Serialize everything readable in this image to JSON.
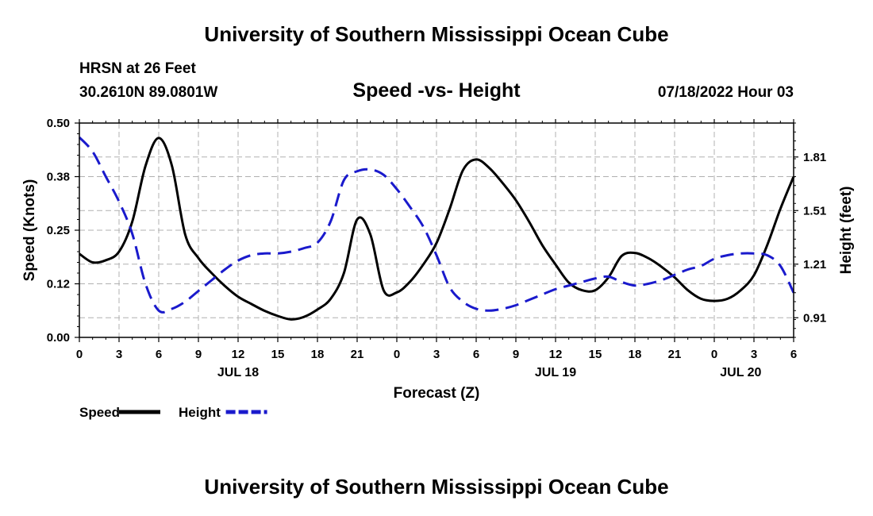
{
  "header": {
    "title": "University of Southern Mississippi Ocean Cube",
    "station": "HRSN at 26 Feet",
    "coords": "30.2610N  89.0801W",
    "chart_title": "Speed -vs- Height",
    "datetime": "07/18/2022 Hour 03"
  },
  "footer": {
    "title": "University of Southern Mississippi Ocean Cube"
  },
  "colors": {
    "speed": "#000000",
    "height": "#1a1acc",
    "grid": "#b0b0b0"
  },
  "chart_data": {
    "type": "line",
    "title": "Speed -vs- Height",
    "xlabel": "Forecast (Z)",
    "ylabel": "Speed (Knots)",
    "y2label": "Height (feet)",
    "x_ticks": [
      "0",
      "3",
      "6",
      "9",
      "12",
      "15",
      "18",
      "21",
      "0",
      "3",
      "6",
      "9",
      "12",
      "15",
      "18",
      "21",
      "0",
      "3",
      "6"
    ],
    "x_range": [
      0,
      54
    ],
    "date_labels": [
      {
        "text": "JUL 18",
        "x": 12
      },
      {
        "text": "JUL 19",
        "x": 36
      },
      {
        "text": "JUL 20",
        "x": 50
      }
    ],
    "ylim": [
      0,
      0.5
    ],
    "y_ticks": [
      "0.00",
      "0.12",
      "0.25",
      "0.38",
      "0.50"
    ],
    "y2lim": [
      0.8,
      2.0
    ],
    "y2_ticks": [
      "0.91",
      "1.21",
      "1.51",
      "1.81"
    ],
    "legend": [
      {
        "name": "Speed",
        "style": "solid"
      },
      {
        "name": "Height",
        "style": "dashed"
      }
    ],
    "series": [
      {
        "name": "Speed",
        "axis": "left",
        "x": [
          0,
          1,
          2,
          3,
          4,
          5,
          6,
          7,
          8,
          9,
          10,
          11,
          12,
          13,
          14,
          15,
          16,
          17,
          18,
          19,
          20,
          21,
          22,
          23,
          24,
          25,
          26,
          27,
          28,
          29,
          30,
          31,
          32,
          33,
          34,
          35,
          36,
          37,
          38,
          39,
          40,
          41,
          42,
          43,
          44,
          45,
          46,
          47,
          48,
          49,
          50,
          51,
          52,
          53,
          54
        ],
        "values": [
          0.195,
          0.175,
          0.18,
          0.2,
          0.27,
          0.4,
          0.465,
          0.4,
          0.24,
          0.185,
          0.15,
          0.12,
          0.095,
          0.078,
          0.062,
          0.05,
          0.042,
          0.048,
          0.065,
          0.09,
          0.15,
          0.275,
          0.24,
          0.11,
          0.105,
          0.13,
          0.17,
          0.22,
          0.3,
          0.39,
          0.415,
          0.395,
          0.36,
          0.32,
          0.27,
          0.215,
          0.17,
          0.128,
          0.11,
          0.11,
          0.14,
          0.19,
          0.197,
          0.185,
          0.165,
          0.14,
          0.11,
          0.09,
          0.085,
          0.09,
          0.11,
          0.145,
          0.215,
          0.3,
          0.375
        ]
      },
      {
        "name": "Height",
        "axis": "right",
        "x": [
          0,
          1,
          2,
          3,
          4,
          5,
          6,
          7,
          8,
          9,
          10,
          11,
          12,
          13,
          14,
          15,
          16,
          17,
          18,
          19,
          20,
          21,
          22,
          23,
          24,
          25,
          26,
          27,
          28,
          29,
          30,
          31,
          32,
          33,
          34,
          35,
          36,
          37,
          38,
          39,
          40,
          41,
          42,
          43,
          44,
          45,
          46,
          47,
          48,
          49,
          50,
          51,
          52,
          53,
          54
        ],
        "values": [
          1.92,
          1.84,
          1.7,
          1.56,
          1.38,
          1.1,
          0.95,
          0.96,
          1.0,
          1.06,
          1.12,
          1.18,
          1.23,
          1.26,
          1.27,
          1.27,
          1.28,
          1.3,
          1.33,
          1.45,
          1.68,
          1.73,
          1.74,
          1.71,
          1.63,
          1.53,
          1.42,
          1.26,
          1.08,
          1.0,
          0.96,
          0.95,
          0.96,
          0.98,
          1.01,
          1.04,
          1.07,
          1.09,
          1.11,
          1.13,
          1.14,
          1.11,
          1.09,
          1.1,
          1.12,
          1.15,
          1.18,
          1.2,
          1.24,
          1.26,
          1.27,
          1.27,
          1.26,
          1.2,
          1.05
        ]
      }
    ]
  }
}
